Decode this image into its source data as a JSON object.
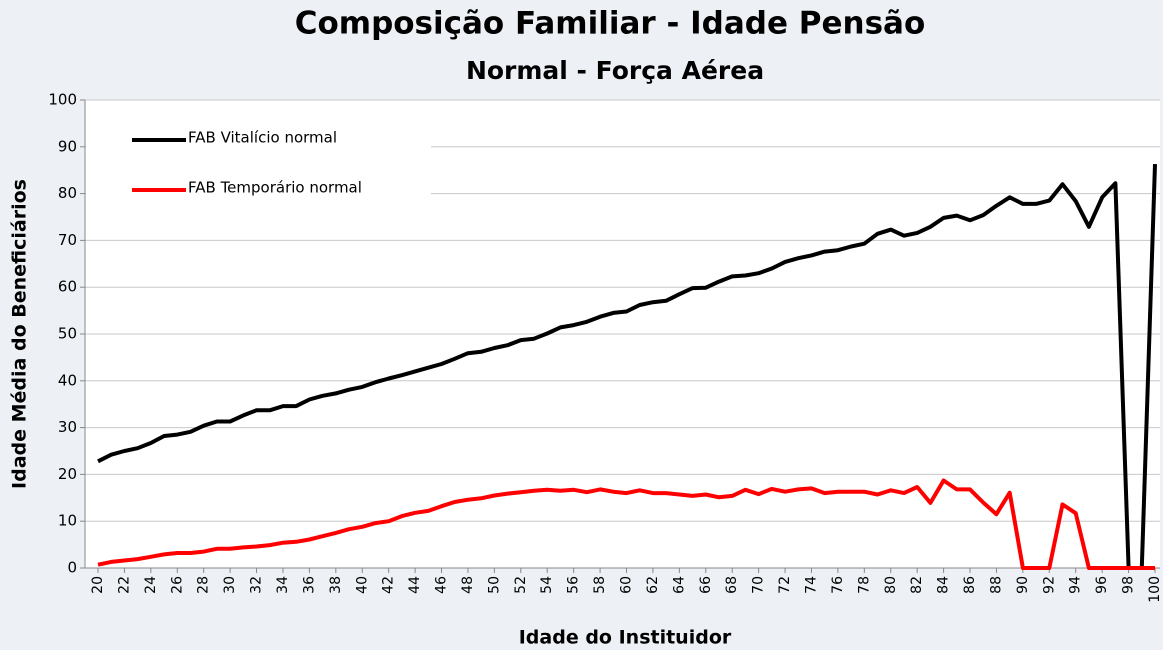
{
  "chart_data": {
    "type": "line",
    "title": [
      "Composição Familiar - Idade Pensão",
      "Normal - Força Aérea"
    ],
    "xlabel": "Idade do Instituidor",
    "ylabel": "Idade Média do Beneficiários",
    "x": [
      20,
      21,
      22,
      23,
      24,
      25,
      26,
      27,
      28,
      29,
      30,
      31,
      32,
      33,
      34,
      35,
      36,
      37,
      38,
      39,
      40,
      41,
      42,
      43,
      44,
      45,
      46,
      47,
      48,
      49,
      50,
      51,
      52,
      53,
      54,
      55,
      56,
      57,
      58,
      59,
      60,
      61,
      62,
      63,
      64,
      65,
      66,
      67,
      68,
      69,
      70,
      71,
      72,
      73,
      74,
      75,
      76,
      77,
      78,
      79,
      80,
      81,
      82,
      83,
      84,
      85,
      86,
      87,
      88,
      89,
      90,
      91,
      92,
      93,
      94,
      95,
      96,
      97,
      98,
      99,
      100
    ],
    "xlim": [
      19,
      100
    ],
    "xticks": [
      20,
      22,
      24,
      26,
      28,
      30,
      32,
      34,
      36,
      38,
      40,
      42,
      44,
      46,
      48,
      50,
      52,
      54,
      56,
      58,
      60,
      62,
      64,
      66,
      68,
      70,
      72,
      74,
      76,
      78,
      80,
      82,
      84,
      86,
      88,
      90,
      92,
      94,
      96,
      98,
      100
    ],
    "ylim": [
      0,
      100
    ],
    "yticks": [
      0,
      10,
      20,
      30,
      40,
      50,
      60,
      70,
      80,
      90,
      100
    ],
    "grid": true,
    "legend": "upper left",
    "series": [
      {
        "name": "FAB Vitalício normal",
        "color": "#000000",
        "values": [
          22.8,
          24.2,
          25,
          25.6,
          26.7,
          28.2,
          28.5,
          29.1,
          30.4,
          31.3,
          31.3,
          32.6,
          33.7,
          33.7,
          34.6,
          34.6,
          36,
          36.8,
          37.3,
          38.1,
          38.7,
          39.7,
          40.5,
          41.2,
          42,
          42.8,
          43.6,
          44.7,
          45.9,
          46.2,
          47,
          47.6,
          48.7,
          49,
          50.1,
          51.4,
          51.9,
          52.6,
          53.7,
          54.5,
          54.8,
          56.2,
          56.8,
          57.1,
          58.5,
          59.8,
          59.9,
          61.2,
          62.3,
          62.5,
          63,
          64,
          65.4,
          66.2,
          66.8,
          67.6,
          67.9,
          68.7,
          69.3,
          71.4,
          72.3,
          71,
          71.6,
          72.9,
          74.8,
          75.3,
          74.3,
          75.4,
          77.4,
          79.2,
          77.8,
          77.8,
          78.5,
          82,
          78.4,
          72.9,
          79.2,
          82.2,
          0,
          0,
          86.3
        ]
      },
      {
        "name": "FAB Temporário normal",
        "color": "#ff0000",
        "values": [
          0.7,
          1.3,
          1.6,
          1.9,
          2.4,
          2.9,
          3.2,
          3.2,
          3.5,
          4.1,
          4.1,
          4.4,
          4.6,
          4.9,
          5.4,
          5.6,
          6.1,
          6.8,
          7.5,
          8.3,
          8.8,
          9.6,
          10,
          11.1,
          11.8,
          12.2,
          13.2,
          14.1,
          14.6,
          14.9,
          15.5,
          15.9,
          16.2,
          16.5,
          16.7,
          16.5,
          16.7,
          16.2,
          16.8,
          16.3,
          16,
          16.6,
          16,
          16,
          15.7,
          15.4,
          15.7,
          15.1,
          15.4,
          16.7,
          15.8,
          16.9,
          16.3,
          16.8,
          17,
          16,
          16.3,
          16.3,
          16.3,
          15.7,
          16.6,
          16,
          17.3,
          13.9,
          18.7,
          16.8,
          16.8,
          14,
          11.5,
          16.1,
          0,
          0,
          0,
          13.6,
          11.7,
          0,
          0,
          0,
          0,
          0,
          0
        ]
      }
    ]
  }
}
